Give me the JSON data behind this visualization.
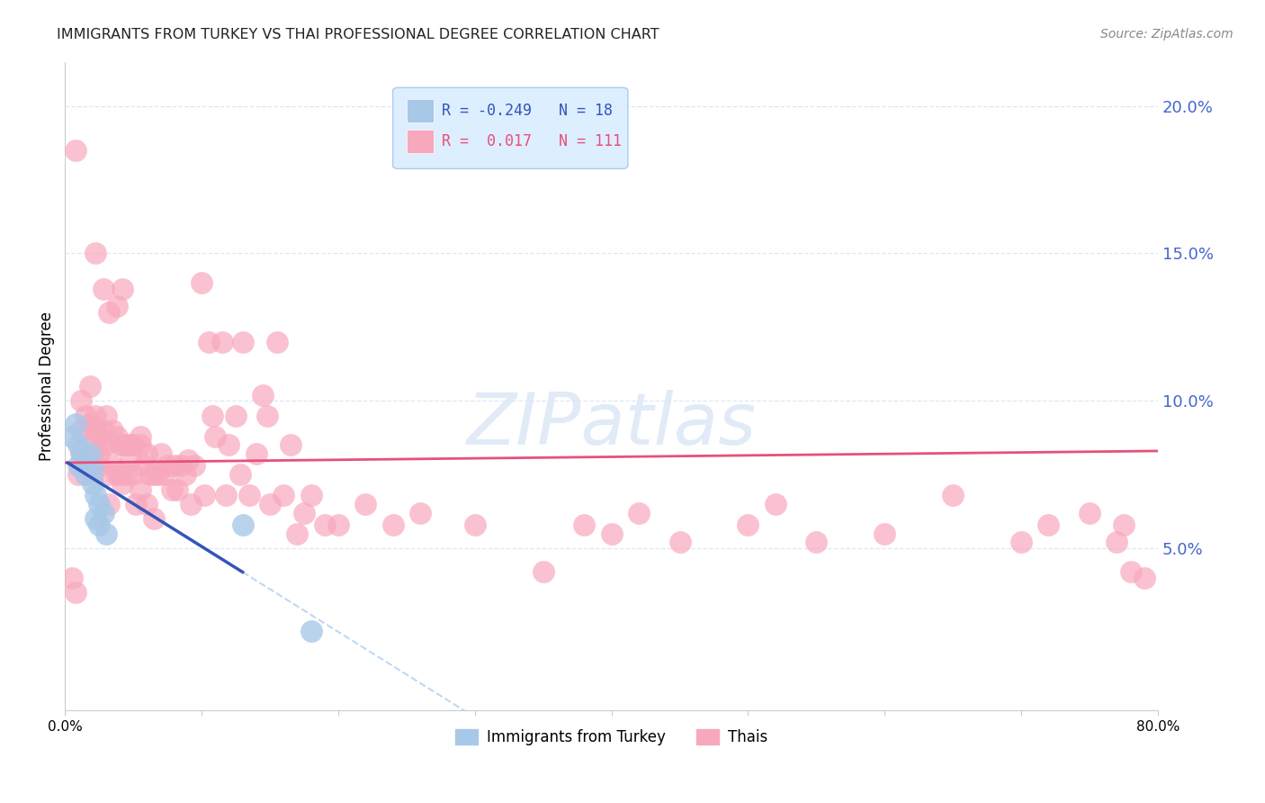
{
  "title": "IMMIGRANTS FROM TURKEY VS THAI PROFESSIONAL DEGREE CORRELATION CHART",
  "source": "Source: ZipAtlas.com",
  "ylabel": "Professional Degree",
  "right_yticks": [
    "20.0%",
    "15.0%",
    "10.0%",
    "5.0%"
  ],
  "right_ytick_vals": [
    0.2,
    0.15,
    0.1,
    0.05
  ],
  "xlim": [
    0.0,
    0.8
  ],
  "ylim": [
    -0.005,
    0.215
  ],
  "legend_r_turkey": "-0.249",
  "legend_n_turkey": "18",
  "legend_r_thai": " 0.017",
  "legend_n_thai": "111",
  "watermark": "ZIPatlas",
  "turkey_color": "#a8c8e8",
  "thai_color": "#f8a8bc",
  "turkey_line_color": "#3355bb",
  "thai_line_color": "#e8507a",
  "turkey_dashed_color": "#c0d8f0",
  "background_color": "#ffffff",
  "grid_color": "#dde8f5",
  "right_axis_color": "#4466cc",
  "legend_bg_color": "#ddeeff",
  "legend_border_color": "#aaccee",
  "turkey_scatter_x": [
    0.005,
    0.008,
    0.01,
    0.01,
    0.012,
    0.015,
    0.015,
    0.018,
    0.02,
    0.02,
    0.022,
    0.022,
    0.025,
    0.025,
    0.028,
    0.03,
    0.13,
    0.18
  ],
  "turkey_scatter_y": [
    0.088,
    0.092,
    0.085,
    0.078,
    0.083,
    0.08,
    0.075,
    0.082,
    0.077,
    0.072,
    0.068,
    0.06,
    0.065,
    0.058,
    0.062,
    0.055,
    0.058,
    0.022
  ],
  "thai_scatter_x": [
    0.005,
    0.008,
    0.01,
    0.012,
    0.012,
    0.015,
    0.015,
    0.018,
    0.018,
    0.02,
    0.02,
    0.022,
    0.022,
    0.025,
    0.025,
    0.025,
    0.028,
    0.028,
    0.03,
    0.03,
    0.032,
    0.032,
    0.035,
    0.035,
    0.038,
    0.038,
    0.04,
    0.04,
    0.042,
    0.042,
    0.045,
    0.045,
    0.048,
    0.05,
    0.05,
    0.052,
    0.055,
    0.055,
    0.058,
    0.06,
    0.06,
    0.062,
    0.065,
    0.065,
    0.068,
    0.07,
    0.072,
    0.075,
    0.078,
    0.08,
    0.082,
    0.085,
    0.088,
    0.09,
    0.092,
    0.095,
    0.1,
    0.102,
    0.105,
    0.108,
    0.11,
    0.115,
    0.118,
    0.12,
    0.125,
    0.128,
    0.13,
    0.135,
    0.14,
    0.145,
    0.148,
    0.15,
    0.155,
    0.16,
    0.165,
    0.17,
    0.175,
    0.18,
    0.19,
    0.2,
    0.22,
    0.24,
    0.26,
    0.3,
    0.35,
    0.38,
    0.4,
    0.42,
    0.45,
    0.5,
    0.52,
    0.55,
    0.6,
    0.65,
    0.7,
    0.72,
    0.75,
    0.77,
    0.775,
    0.78,
    0.79,
    0.008,
    0.012,
    0.018,
    0.022,
    0.028,
    0.032,
    0.038,
    0.042,
    0.048,
    0.055,
    0.062
  ],
  "thai_scatter_y": [
    0.04,
    0.035,
    0.075,
    0.082,
    0.09,
    0.095,
    0.085,
    0.08,
    0.092,
    0.08,
    0.075,
    0.09,
    0.095,
    0.088,
    0.082,
    0.078,
    0.09,
    0.085,
    0.095,
    0.085,
    0.075,
    0.065,
    0.09,
    0.078,
    0.088,
    0.075,
    0.085,
    0.075,
    0.085,
    0.072,
    0.085,
    0.075,
    0.08,
    0.085,
    0.075,
    0.065,
    0.085,
    0.07,
    0.078,
    0.082,
    0.065,
    0.075,
    0.075,
    0.06,
    0.075,
    0.082,
    0.075,
    0.078,
    0.07,
    0.078,
    0.07,
    0.078,
    0.075,
    0.08,
    0.065,
    0.078,
    0.14,
    0.068,
    0.12,
    0.095,
    0.088,
    0.12,
    0.068,
    0.085,
    0.095,
    0.075,
    0.12,
    0.068,
    0.082,
    0.102,
    0.095,
    0.065,
    0.12,
    0.068,
    0.085,
    0.055,
    0.062,
    0.068,
    0.058,
    0.058,
    0.065,
    0.058,
    0.062,
    0.058,
    0.042,
    0.058,
    0.055,
    0.062,
    0.052,
    0.058,
    0.065,
    0.052,
    0.055,
    0.068,
    0.052,
    0.058,
    0.062,
    0.052,
    0.058,
    0.042,
    0.04,
    0.185,
    0.1,
    0.105,
    0.15,
    0.138,
    0.13,
    0.132,
    0.138,
    0.085,
    0.088,
    0.08
  ]
}
